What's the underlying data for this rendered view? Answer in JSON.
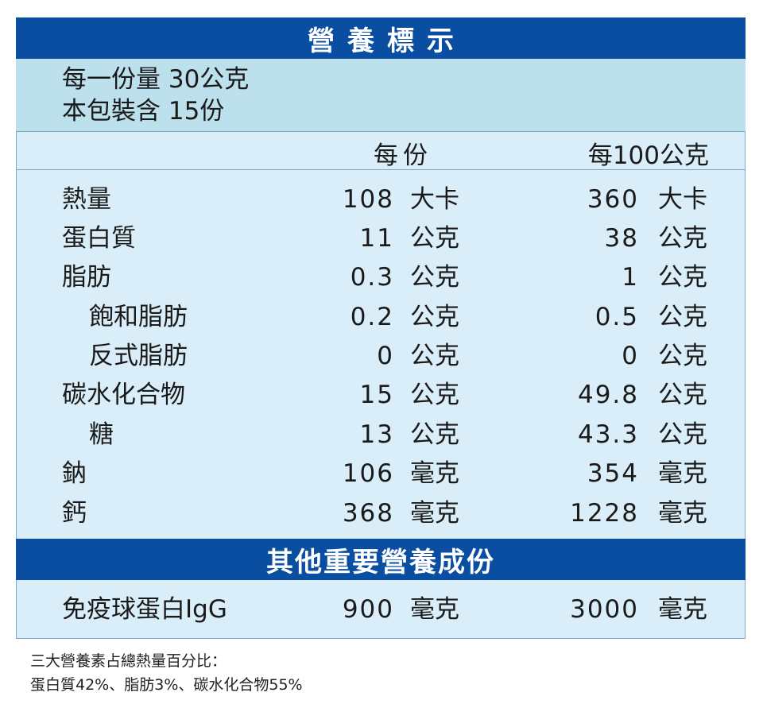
{
  "title": "營養標示",
  "serving": {
    "per_serving": "每一份量 30公克",
    "servings_per_package": "本包裝含 15份"
  },
  "columns": {
    "per_serving": "每份",
    "per_100g": "每100公克"
  },
  "nutrients": [
    {
      "name": "熱量",
      "per_serving": "108",
      "unit_serving": "大卡",
      "per_100g": "360",
      "unit_100g": "大卡"
    },
    {
      "name": "蛋白質",
      "per_serving": "11",
      "unit_serving": "公克",
      "per_100g": "38",
      "unit_100g": "公克"
    },
    {
      "name": "脂肪",
      "per_serving": "0.3",
      "unit_serving": "公克",
      "per_100g": "1",
      "unit_100g": "公克"
    },
    {
      "name": "飽和脂肪",
      "per_serving": "0.2",
      "unit_serving": "公克",
      "per_100g": "0.5",
      "unit_100g": "公克"
    },
    {
      "name": "反式脂肪",
      "per_serving": "0",
      "unit_serving": "公克",
      "per_100g": "0",
      "unit_100g": "公克"
    },
    {
      "name": "碳水化合物",
      "per_serving": "15",
      "unit_serving": "公克",
      "per_100g": "49.8",
      "unit_100g": "公克"
    },
    {
      "name": "糖",
      "per_serving": "13",
      "unit_serving": "公克",
      "per_100g": "43.3",
      "unit_100g": "公克"
    },
    {
      "name": "鈉",
      "per_serving": "106",
      "unit_serving": "毫克",
      "per_100g": "354",
      "unit_100g": "毫克"
    },
    {
      "name": "鈣",
      "per_serving": "368",
      "unit_serving": "毫克",
      "per_100g": "1228",
      "unit_100g": "毫克"
    }
  ],
  "other_title": "其他重要營養成份",
  "other": {
    "name": "免疫球蛋白IgG",
    "per_serving": "900",
    "unit_serving": "毫克",
    "per_100g": "3000",
    "unit_100g": "毫克"
  },
  "footnote": {
    "line1": "三大營養素占總熱量百分比：",
    "line2": "蛋白質42%、脂肪3%、碳水化合物55%"
  },
  "colors": {
    "bar": "#0a4ea2",
    "serving_band": "#bce0ec",
    "panel": "#d9eef8"
  }
}
